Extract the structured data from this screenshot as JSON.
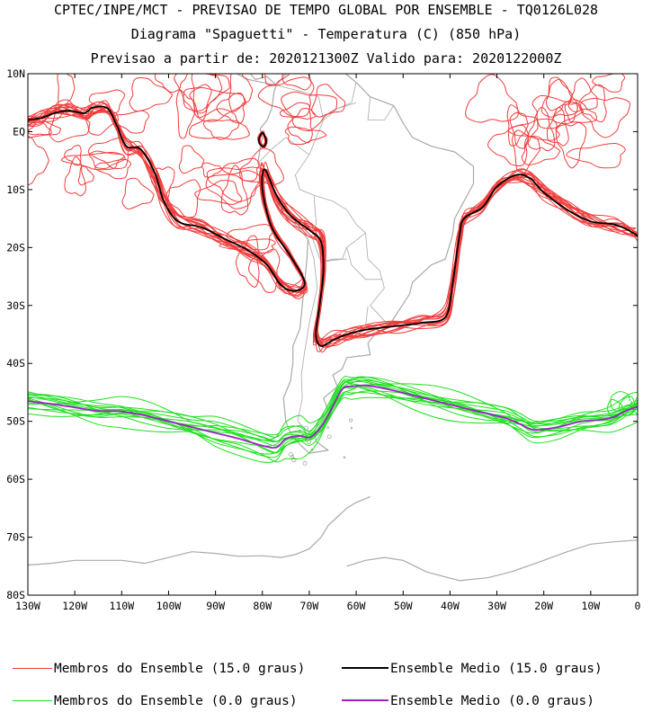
{
  "header": {
    "line1": "CPTEC/INPE/MCT - PREVISAO DE TEMPO GLOBAL POR ENSEMBLE - TQ0126L028",
    "line2": "Diagrama \"Spaguetti\" - Temperatura (C) (850 hPa)",
    "line3": "Previsao a partir de: 2020121300Z  Valido para: 2020122000Z"
  },
  "map": {
    "lon_range": [
      -130,
      0
    ],
    "lat_range": [
      -80,
      10
    ],
    "lon_ticks": [
      {
        "value": -130,
        "label": "130W"
      },
      {
        "value": -120,
        "label": "120W"
      },
      {
        "value": -110,
        "label": "110W"
      },
      {
        "value": -100,
        "label": "100W"
      },
      {
        "value": -90,
        "label": "90W"
      },
      {
        "value": -80,
        "label": "80W"
      },
      {
        "value": -70,
        "label": "70W"
      },
      {
        "value": -60,
        "label": "60W"
      },
      {
        "value": -50,
        "label": "50W"
      },
      {
        "value": -40,
        "label": "40W"
      },
      {
        "value": -30,
        "label": "30W"
      },
      {
        "value": -20,
        "label": "20W"
      },
      {
        "value": -10,
        "label": "10W"
      },
      {
        "value": 0,
        "label": "0"
      }
    ],
    "lat_ticks": [
      {
        "value": 10,
        "label": "10N"
      },
      {
        "value": 0,
        "label": "EQ"
      },
      {
        "value": -10,
        "label": "10S"
      },
      {
        "value": -20,
        "label": "20S"
      },
      {
        "value": -30,
        "label": "30S"
      },
      {
        "value": -40,
        "label": "40S"
      },
      {
        "value": -50,
        "label": "50S"
      },
      {
        "value": -60,
        "label": "60S"
      },
      {
        "value": -70,
        "label": "70S"
      },
      {
        "value": -80,
        "label": "80S"
      }
    ],
    "colors": {
      "members_15": "#f03c3c",
      "mean_15": "#000000",
      "members_0": "#1ee01e",
      "mean_0": "#a020c8",
      "coastline": "#a9a9a9"
    },
    "mean_15_path": [
      [
        -130,
        2
      ],
      [
        -127,
        2.4
      ],
      [
        -124,
        3.3
      ],
      [
        -121,
        3.6
      ],
      [
        -118,
        3.2
      ],
      [
        -116,
        4.2
      ],
      [
        -113,
        4
      ],
      [
        -111,
        1
      ],
      [
        -109,
        -2.5
      ],
      [
        -106,
        -3
      ],
      [
        -103,
        -7
      ],
      [
        -101,
        -12
      ],
      [
        -98,
        -15.5
      ],
      [
        -93,
        -16.5
      ],
      [
        -88,
        -18.5
      ],
      [
        -83,
        -20.5
      ],
      [
        -79,
        -23
      ],
      [
        -76,
        -26.5
      ],
      [
        -73,
        -27.5
      ],
      [
        -71,
        -26
      ],
      [
        -74,
        -21.5
      ],
      [
        -78,
        -16.5
      ],
      [
        -80,
        -10
      ],
      [
        -79.5,
        -6.5
      ],
      [
        -77,
        -11
      ],
      [
        -74,
        -14.5
      ],
      [
        -70,
        -17
      ],
      [
        -67.5,
        -19
      ],
      [
        -67,
        -24
      ],
      [
        -67.8,
        -30
      ],
      [
        -68.6,
        -35
      ],
      [
        -67.5,
        -37
      ],
      [
        -65,
        -36
      ],
      [
        -62,
        -35
      ],
      [
        -58,
        -34.2
      ],
      [
        -52,
        -33.6
      ],
      [
        -46,
        -33
      ],
      [
        -41,
        -32
      ],
      [
        -39.5,
        -26.5
      ],
      [
        -38,
        -18
      ],
      [
        -37,
        -15
      ],
      [
        -33,
        -13
      ],
      [
        -30,
        -9.5
      ],
      [
        -26,
        -7.5
      ],
      [
        -23,
        -8
      ],
      [
        -20,
        -10.5
      ],
      [
        -15,
        -13.5
      ],
      [
        -10,
        -15.5
      ],
      [
        -5,
        -16
      ],
      [
        -2,
        -17
      ],
      [
        0,
        -18
      ]
    ],
    "mean_15_equator_loop": [
      [
        -80.8,
        -1.3
      ],
      [
        -80,
        -0.2
      ],
      [
        -79.2,
        -1.5
      ],
      [
        -79.6,
        -2.5
      ],
      [
        -80.5,
        -2.2
      ],
      [
        -80.8,
        -1.3
      ]
    ],
    "mean_0_path": [
      [
        -130,
        -46.5
      ],
      [
        -125,
        -47
      ],
      [
        -120,
        -47.6
      ],
      [
        -115,
        -48.2
      ],
      [
        -110,
        -48.3
      ],
      [
        -105,
        -49
      ],
      [
        -100,
        -50
      ],
      [
        -95,
        -51
      ],
      [
        -90,
        -52
      ],
      [
        -85,
        -53
      ],
      [
        -80,
        -54.2
      ],
      [
        -77,
        -54.5
      ],
      [
        -75,
        -53
      ],
      [
        -72,
        -52.5
      ],
      [
        -70,
        -52.8
      ],
      [
        -68,
        -51.5
      ],
      [
        -66,
        -49
      ],
      [
        -63,
        -44.5
      ],
      [
        -61,
        -44
      ],
      [
        -58,
        -43.8
      ],
      [
        -53,
        -44.5
      ],
      [
        -48,
        -45.5
      ],
      [
        -43,
        -46.5
      ],
      [
        -38,
        -47.5
      ],
      [
        -33,
        -48.5
      ],
      [
        -28,
        -49.5
      ],
      [
        -25,
        -50.5
      ],
      [
        -22,
        -51.5
      ],
      [
        -17,
        -51
      ],
      [
        -12,
        -50
      ],
      [
        -6,
        -49.5
      ],
      [
        -2,
        -48
      ],
      [
        0,
        -47.5
      ]
    ]
  },
  "legend": {
    "members_15": "Membros do Ensemble (15.0 graus)",
    "mean_15": "Ensemble Medio (15.0 graus)",
    "members_0": "Membros do Ensemble (0.0 graus)",
    "mean_0": "Ensemble Medio (0.0 graus)"
  }
}
